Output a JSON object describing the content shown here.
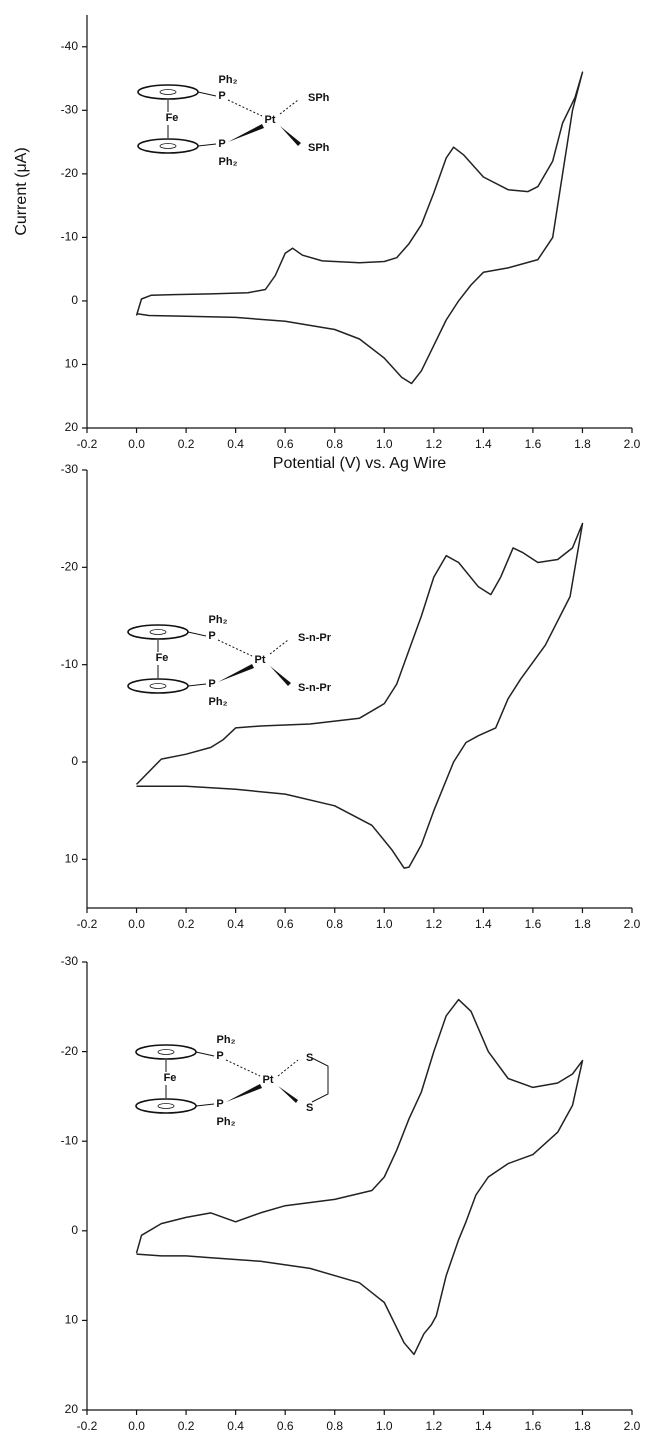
{
  "chart_data": [
    {
      "type": "line",
      "ylabel": "Current (μA)",
      "xlabel": "Potential (V) vs. Ag Wire",
      "xlim": [
        -0.2,
        2.0
      ],
      "ylim": [
        -45,
        20
      ],
      "yaxis_inverted": true,
      "xticks": [
        -0.2,
        {
          "value": 0,
          "label": "0.0"
        },
        0.2,
        0.4,
        0.6,
        0.8,
        {
          "value": 1,
          "label": "1.0"
        },
        1.2,
        1.4,
        1.6,
        1.8,
        {
          "value": 2,
          "label": "2.0"
        }
      ],
      "yticks": [
        -40,
        -30,
        -20,
        -10,
        0,
        10,
        20
      ],
      "annotations": [
        "Ph₂",
        "P",
        "Fe",
        "Pt",
        "P",
        "Ph₂",
        "SPh",
        "SPh"
      ],
      "x": [
        0,
        0.02,
        0.06,
        0.15,
        0.3,
        0.45,
        0.52,
        0.56,
        0.6,
        0.63,
        0.67,
        0.75,
        0.9,
        1.0,
        1.05,
        1.1,
        1.15,
        1.2,
        1.25,
        1.28,
        1.32,
        1.4,
        1.5,
        1.58,
        1.62,
        1.68,
        1.72,
        1.77,
        1.8,
        1.76,
        1.72,
        1.68,
        1.62,
        1.5,
        1.4,
        1.35,
        1.3,
        1.25,
        1.2,
        1.15,
        1.11,
        1.07,
        1.0,
        0.9,
        0.8,
        0.6,
        0.4,
        0.2,
        0.05,
        0
      ],
      "series": [
        {
          "color": "#222222",
          "values": [
            2.3,
            -0.3,
            -0.9,
            -1.0,
            -1.1,
            -1.3,
            -1.8,
            -4,
            -7.5,
            -8.3,
            -7.2,
            -6.3,
            -6,
            -6.2,
            -6.8,
            -9,
            -12,
            -17,
            -22.5,
            -24.2,
            -23,
            -19.5,
            -17.5,
            -17.2,
            -18,
            -22,
            -28,
            -32,
            -36,
            -30,
            -20,
            -10,
            -6.5,
            -5.2,
            -4.5,
            -2.5,
            0,
            3,
            7,
            11,
            13,
            12,
            9,
            6,
            4.5,
            3.2,
            2.6,
            2.4,
            2.3,
            2.0
          ]
        }
      ]
    },
    {
      "type": "line",
      "xlim": [
        -0.2,
        2.0
      ],
      "ylim": [
        -30,
        15
      ],
      "yaxis_inverted": true,
      "xticks": [
        -0.2,
        {
          "value": 0,
          "label": "0.0"
        },
        0.2,
        0.4,
        0.6,
        0.8,
        {
          "value": 1,
          "label": "1.0"
        },
        1.2,
        1.4,
        1.6,
        1.8,
        {
          "value": 2,
          "label": "2.0"
        }
      ],
      "yticks": [
        -30,
        -20,
        -10,
        0,
        10
      ],
      "annotations": [
        "Ph₂",
        "P",
        "Fe",
        "Pt",
        "P",
        "Ph₂",
        "S-n-Pr",
        "S-n-Pr"
      ],
      "x": [
        0,
        0.1,
        0.2,
        0.3,
        0.35,
        0.4,
        0.5,
        0.7,
        0.9,
        1.0,
        1.05,
        1.1,
        1.15,
        1.2,
        1.25,
        1.3,
        1.38,
        1.43,
        1.47,
        1.52,
        1.56,
        1.62,
        1.7,
        1.76,
        1.8,
        1.75,
        1.65,
        1.55,
        1.5,
        1.45,
        1.38,
        1.33,
        1.28,
        1.2,
        1.15,
        1.1,
        1.08,
        1.03,
        0.95,
        0.8,
        0.6,
        0.4,
        0.2,
        0
      ],
      "series": [
        {
          "color": "#222222",
          "values": [
            2.3,
            -0.3,
            -0.8,
            -1.5,
            -2.3,
            -3.5,
            -3.7,
            -3.9,
            -4.5,
            -6,
            -8,
            -11.5,
            -15,
            -19,
            -21.2,
            -20.5,
            -18,
            -17.2,
            -19,
            -22,
            -21.5,
            -20.5,
            -20.8,
            -22,
            -24.5,
            -17,
            -12,
            -8.5,
            -6.5,
            -3.5,
            -2.7,
            -2,
            0,
            5,
            8.5,
            10.8,
            10.9,
            9,
            6.5,
            4.5,
            3.3,
            2.8,
            2.5,
            2.5
          ]
        }
      ]
    },
    {
      "type": "line",
      "xlim": [
        -0.2,
        2.0
      ],
      "ylim": [
        -30,
        20
      ],
      "yaxis_inverted": true,
      "xticks": [
        -0.2,
        {
          "value": 0,
          "label": "0.0"
        },
        0.2,
        0.4,
        0.6,
        0.8,
        {
          "value": 1,
          "label": "1.0"
        },
        1.2,
        1.4,
        1.6,
        1.8,
        {
          "value": 2,
          "label": "2.0"
        }
      ],
      "yticks": [
        -30,
        -20,
        -10,
        0,
        10,
        20
      ],
      "annotations": [
        "Ph₂",
        "P",
        "Fe",
        "Pt",
        "P",
        "Ph₂",
        "S",
        "S"
      ],
      "x": [
        0,
        0.02,
        0.1,
        0.2,
        0.3,
        0.4,
        0.5,
        0.6,
        0.8,
        0.95,
        1.0,
        1.05,
        1.1,
        1.15,
        1.2,
        1.25,
        1.3,
        1.35,
        1.42,
        1.5,
        1.6,
        1.7,
        1.76,
        1.8,
        1.76,
        1.7,
        1.6,
        1.5,
        1.42,
        1.37,
        1.33,
        1.3,
        1.25,
        1.21,
        1.19,
        1.16,
        1.12,
        1.08,
        1.0,
        0.9,
        0.7,
        0.5,
        0.3,
        0.2,
        0.1,
        0
      ],
      "series": [
        {
          "color": "#222222",
          "values": [
            2.5,
            0.5,
            -0.8,
            -1.5,
            -2.0,
            -1.0,
            -2.0,
            -2.8,
            -3.5,
            -4.5,
            -6,
            -9,
            -12.5,
            -15.5,
            -20,
            -24,
            -25.8,
            -24.5,
            -20,
            -17,
            -16,
            -16.5,
            -17.5,
            -19,
            -14,
            -11,
            -8.5,
            -7.5,
            -6,
            -4,
            -1,
            1,
            5,
            9.5,
            10.5,
            11.5,
            13.8,
            12.5,
            8,
            5.8,
            4.2,
            3.4,
            3.0,
            2.8,
            2.8,
            2.6
          ]
        }
      ]
    }
  ]
}
